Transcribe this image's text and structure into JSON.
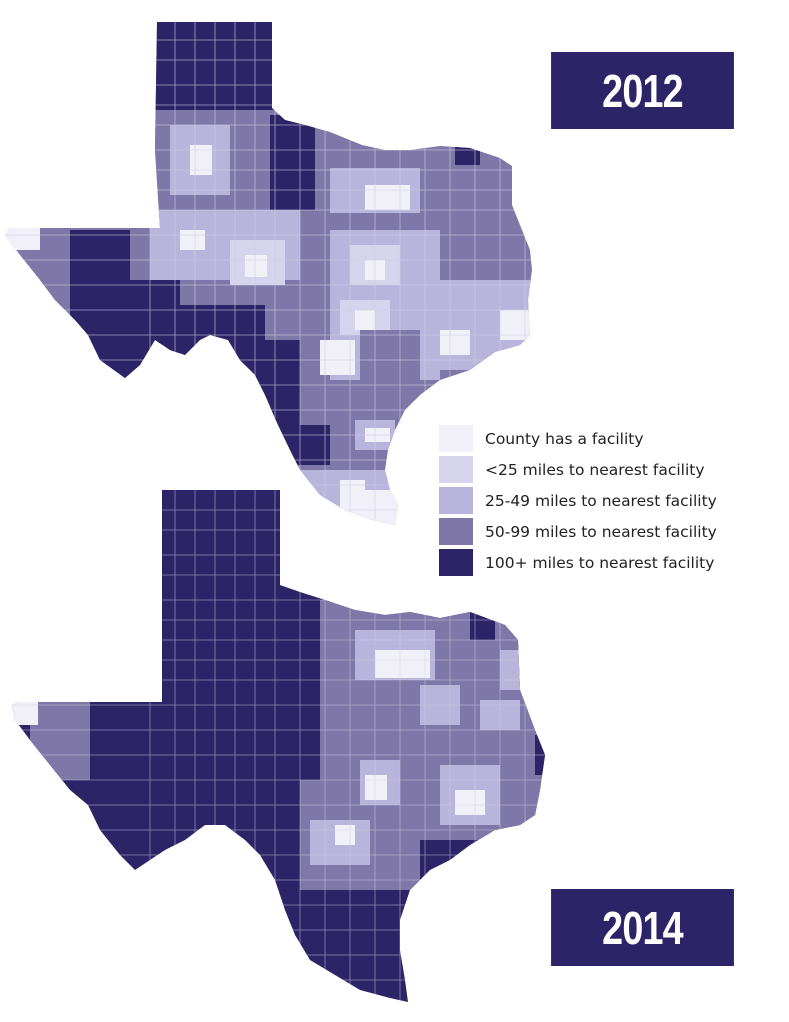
{
  "maps": [
    {
      "year": "2012"
    },
    {
      "year": "2014"
    }
  ],
  "legend": [
    {
      "label": "County has a facility",
      "color": "#f1f0f8"
    },
    {
      "label": "<25 miles to nearest facility",
      "color": "#d6d4ec"
    },
    {
      "label": "25-49 miles to nearest facility",
      "color": "#b8b5dc"
    },
    {
      "label": "50-99 miles to nearest facility",
      "color": "#7f77a8"
    },
    {
      "label": "100+ miles to nearest facility",
      "color": "#2b2467"
    }
  ]
}
